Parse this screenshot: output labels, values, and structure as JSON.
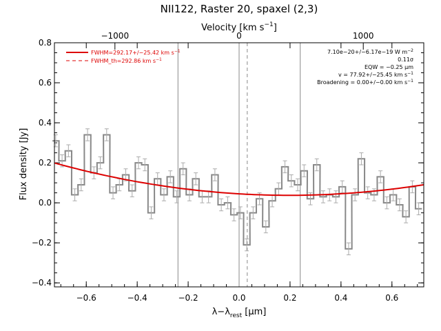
{
  "chart_data": {
    "type": "line",
    "title": "NII122, Raster 20, spaxel (2,3)",
    "xlabel": "λ−λ",
    "xlabel_sub": "rest",
    "xlabel_unit": " [μm]",
    "ylabel": "Flux density [Jy]",
    "top_axis_label": "Velocity [km s",
    "top_axis_sup": "−1",
    "top_axis_close": "]",
    "xlim": [
      -0.725,
      0.725
    ],
    "ylim": [
      -0.42,
      0.8
    ],
    "xticks": [
      -0.6,
      -0.4,
      -0.2,
      0.0,
      0.2,
      0.4,
      0.6
    ],
    "xtick_labels": [
      "−0.6",
      "−0.4",
      "−0.2",
      "0.0",
      "0.2",
      "0.4",
      "0.6"
    ],
    "yticks": [
      -0.4,
      -0.2,
      0.0,
      0.2,
      0.4,
      0.6,
      0.8
    ],
    "ytick_labels": [
      "−0.4",
      "−0.2",
      "0.0",
      "0.2",
      "0.4",
      "0.6",
      "0.8"
    ],
    "top_ticks_um": [
      -0.4875,
      0.0,
      0.4875
    ],
    "top_tick_labels": [
      "−1000",
      "0",
      "1000"
    ],
    "vlines_solid": [
      -0.24,
      0.0,
      0.24
    ],
    "vline_dashed": 0.032,
    "grid": false,
    "legend_position": "top-left",
    "legend": [
      {
        "label": "FWHM=292.17+/−25.42 km s",
        "sup": "−1",
        "style": "solid",
        "color": "#dd0000"
      },
      {
        "label": "FWHM_th=292.86 km s",
        "sup": "−1",
        "style": "dashed",
        "color": "#dd0000"
      }
    ],
    "annotations": [
      {
        "text": "7.10e−20+/−6.17e−19 W m",
        "sup": "−2"
      },
      {
        "text": "0.11σ",
        "sup": ""
      },
      {
        "text": "EQW = −0.25 μm",
        "sup": ""
      },
      {
        "text": "v = 77.92+/−25.45 km s",
        "sup": "−1"
      },
      {
        "text": "Broadening = 0.00+/−0.00 km s",
        "sup": "−1"
      }
    ],
    "series": [
      {
        "name": "data",
        "color": "#888888",
        "style": "step",
        "bin_width": 0.0255,
        "x": [
          -0.72,
          -0.695,
          -0.67,
          -0.645,
          -0.62,
          -0.595,
          -0.57,
          -0.545,
          -0.52,
          -0.495,
          -0.47,
          -0.445,
          -0.42,
          -0.395,
          -0.37,
          -0.345,
          -0.32,
          -0.295,
          -0.27,
          -0.245,
          -0.22,
          -0.195,
          -0.17,
          -0.145,
          -0.12,
          -0.095,
          -0.07,
          -0.045,
          -0.02,
          0.005,
          0.03,
          0.055,
          0.08,
          0.105,
          0.13,
          0.155,
          0.18,
          0.205,
          0.23,
          0.255,
          0.28,
          0.305,
          0.33,
          0.355,
          0.38,
          0.405,
          0.43,
          0.455,
          0.48,
          0.505,
          0.53,
          0.555,
          0.58,
          0.605,
          0.63,
          0.655,
          0.68,
          0.705
        ],
        "y": [
          0.31,
          0.21,
          0.26,
          0.04,
          0.09,
          0.34,
          0.15,
          0.2,
          0.34,
          0.05,
          0.09,
          0.14,
          0.06,
          0.2,
          0.19,
          -0.05,
          0.12,
          0.04,
          0.13,
          0.03,
          0.17,
          0.04,
          0.12,
          0.03,
          0.03,
          0.14,
          -0.01,
          0.0,
          -0.06,
          -0.05,
          -0.21,
          -0.05,
          0.02,
          -0.12,
          0.01,
          0.07,
          0.18,
          0.11,
          0.09,
          0.16,
          0.02,
          0.19,
          0.03,
          0.04,
          0.03,
          0.08,
          -0.23,
          0.04,
          0.22,
          0.05,
          0.04,
          0.13,
          0.0,
          0.04,
          -0.01,
          -0.07,
          0.08,
          -0.03
        ],
        "yerr": 0.03
      },
      {
        "name": "fit",
        "color": "#dd0000",
        "style": "line",
        "model": "quadratic",
        "coefficients": [
          0.045,
          -0.075,
          0.19
        ]
      }
    ]
  }
}
